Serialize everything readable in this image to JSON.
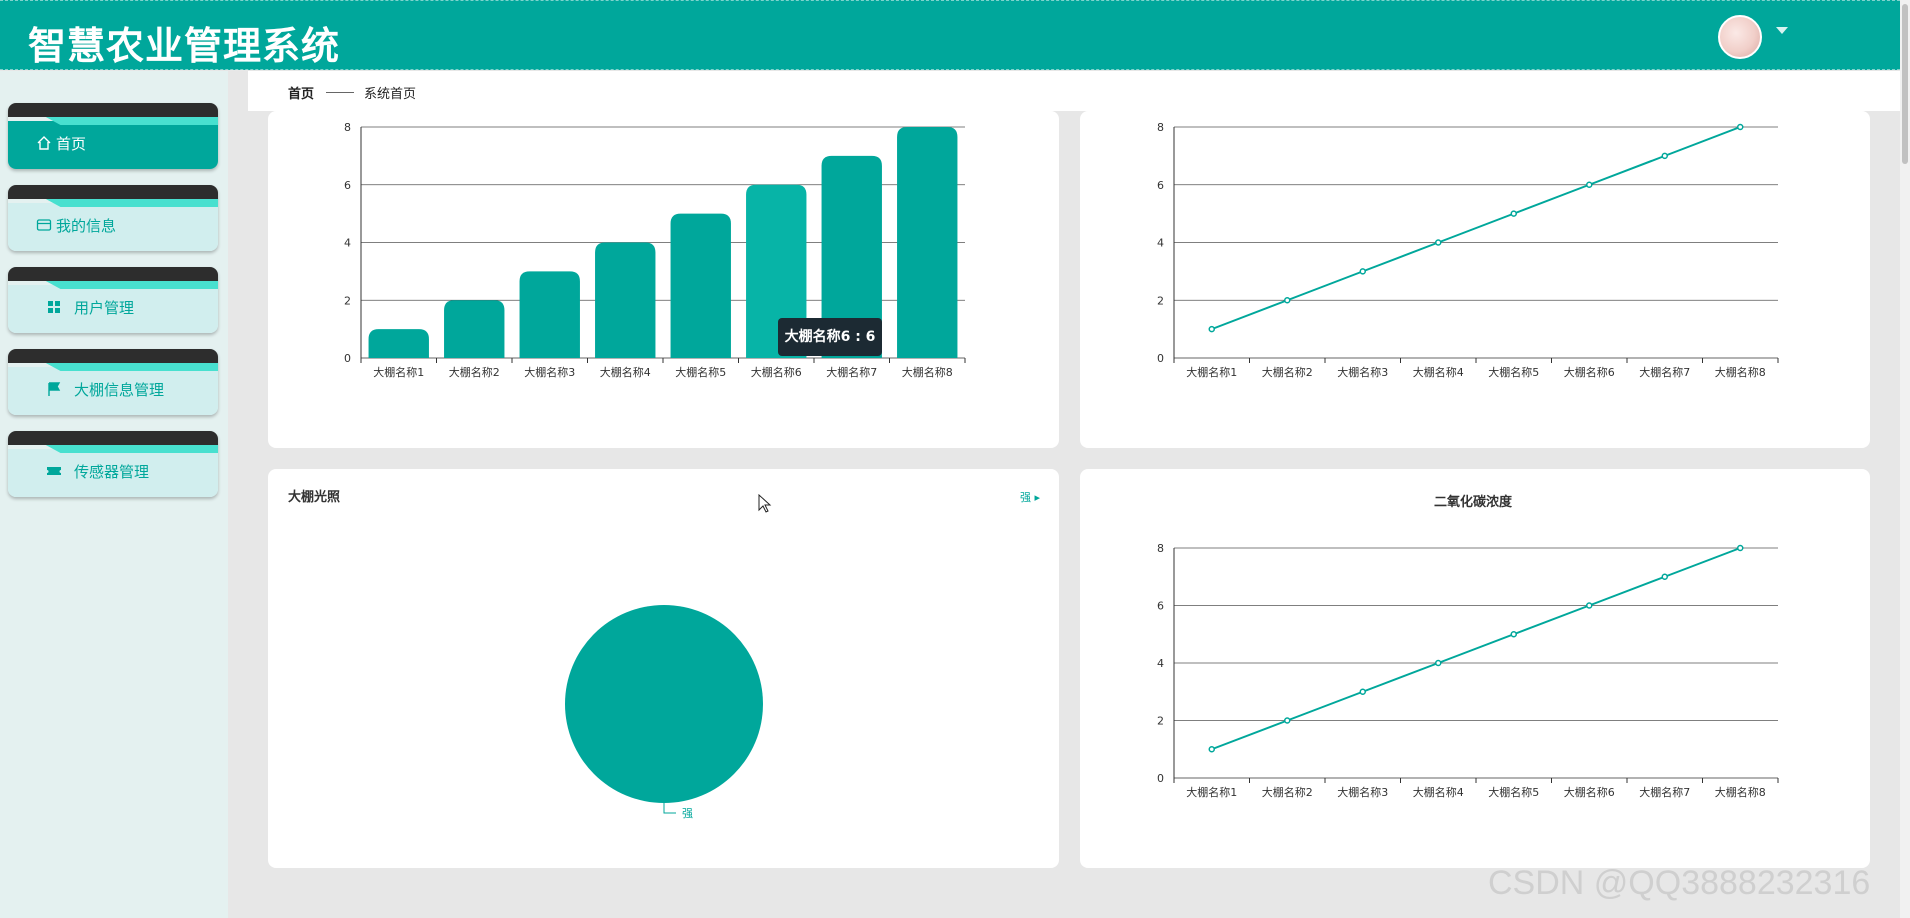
{
  "app": {
    "title": "智慧农业管理系统"
  },
  "header": {
    "avatar_icon": "user-avatar-photo",
    "caret_icon": "caret-down-icon"
  },
  "sidebar": {
    "items": [
      {
        "label": "首页",
        "icon": "home-icon",
        "active": true
      },
      {
        "label": "我的信息",
        "icon": "id-card-icon",
        "active": false
      },
      {
        "label": "用户管理",
        "icon": "grid-icon",
        "active": false
      },
      {
        "label": "大棚信息管理",
        "icon": "flag-icon",
        "active": false
      },
      {
        "label": "传感器管理",
        "icon": "ticket-icon",
        "active": false
      }
    ]
  },
  "breadcrumb": {
    "home": "首页",
    "current": "系统首页"
  },
  "panels": {
    "bar": {
      "tooltip": "大棚名称6 : 6"
    },
    "pie": {
      "title": "大棚光照",
      "legend_label": "强",
      "slice_label": "强"
    },
    "co2": {
      "title": "二氧化碳浓度"
    }
  },
  "watermark": "CSDN @QQ3888232316",
  "colors": {
    "accent": "#00a79b",
    "header": "#00a79b",
    "sidebar_bg": "#e4f1f0",
    "menu_item_bg": "#d1eeee",
    "tooltip_bg": "#1c2a33"
  },
  "chart_data": [
    {
      "type": "bar",
      "title": "",
      "categories": [
        "大棚名称1",
        "大棚名称2",
        "大棚名称3",
        "大棚名称4",
        "大棚名称5",
        "大棚名称6",
        "大棚名称7",
        "大棚名称8"
      ],
      "values": [
        1,
        2,
        3,
        4,
        5,
        6,
        7,
        8
      ],
      "ylim": [
        0,
        8
      ],
      "yticks": [
        0,
        2,
        4,
        6,
        8
      ],
      "grid": true,
      "highlighted_category": "大棚名称6"
    },
    {
      "type": "line",
      "title": "",
      "categories": [
        "大棚名称1",
        "大棚名称2",
        "大棚名称3",
        "大棚名称4",
        "大棚名称5",
        "大棚名称6",
        "大棚名称7",
        "大棚名称8"
      ],
      "values": [
        1,
        2,
        3,
        4,
        5,
        6,
        7,
        8
      ],
      "ylim": [
        0,
        8
      ],
      "yticks": [
        0,
        2,
        4,
        6,
        8
      ],
      "grid": true
    },
    {
      "type": "pie",
      "title": "大棚光照",
      "categories": [
        "强"
      ],
      "values": [
        1
      ],
      "legend": "top-right"
    },
    {
      "type": "line",
      "title": "二氧化碳浓度",
      "categories": [
        "大棚名称1",
        "大棚名称2",
        "大棚名称3",
        "大棚名称4",
        "大棚名称5",
        "大棚名称6",
        "大棚名称7",
        "大棚名称8"
      ],
      "values": [
        1,
        2,
        3,
        4,
        5,
        6,
        7,
        8
      ],
      "ylim": [
        0,
        8
      ],
      "yticks": [
        0,
        2,
        4,
        6,
        8
      ],
      "grid": true
    }
  ]
}
